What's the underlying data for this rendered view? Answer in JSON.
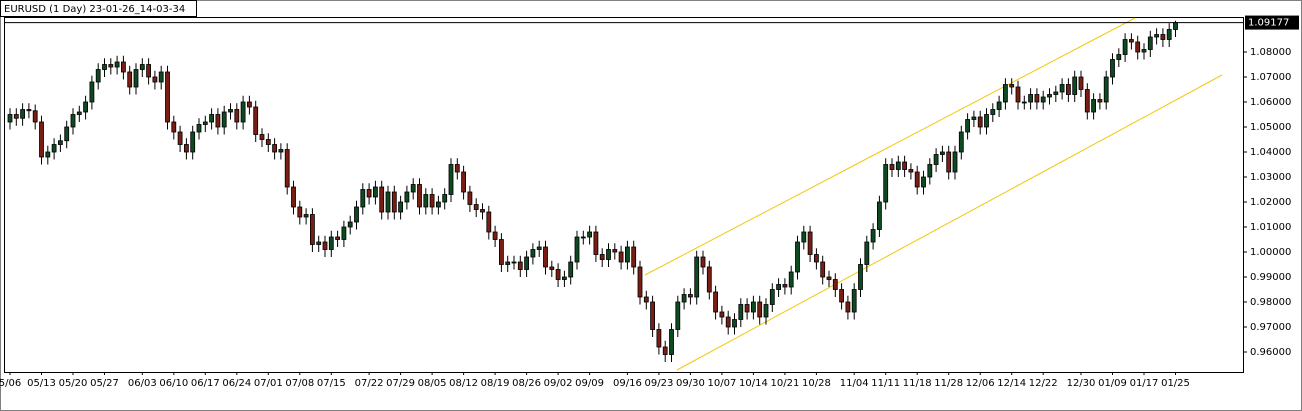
{
  "chart_data": {
    "type": "candlestick",
    "title": "EURUSD (1 Day) 23-01-26_14-03-34",
    "categories": [
      "5/06",
      null,
      null,
      null,
      null,
      "05/13",
      null,
      null,
      null,
      null,
      "05/20",
      null,
      null,
      null,
      null,
      "05/27",
      null,
      null,
      null,
      null,
      null,
      "06/03",
      null,
      null,
      null,
      null,
      "06/10",
      null,
      null,
      null,
      null,
      "06/17",
      null,
      null,
      null,
      null,
      "06/24",
      null,
      null,
      null,
      null,
      "07/01",
      null,
      null,
      null,
      null,
      "07/08",
      null,
      null,
      null,
      null,
      "07/15",
      null,
      null,
      null,
      null,
      null,
      "07/22",
      null,
      null,
      null,
      null,
      "07/29",
      null,
      null,
      null,
      null,
      "08/05",
      null,
      null,
      null,
      null,
      "08/12",
      null,
      null,
      null,
      null,
      "08/19",
      null,
      null,
      null,
      null,
      "08/26",
      null,
      null,
      null,
      null,
      "09/02",
      null,
      null,
      null,
      null,
      "09/09",
      null,
      null,
      null,
      null,
      null,
      "09/16",
      null,
      null,
      null,
      null,
      "09/23",
      null,
      null,
      null,
      null,
      "09/30",
      null,
      null,
      null,
      null,
      "10/07",
      null,
      null,
      null,
      null,
      "10/14",
      null,
      null,
      null,
      null,
      "10/21",
      null,
      null,
      null,
      null,
      "10/28",
      null,
      null,
      null,
      null,
      null,
      "11/04",
      null,
      null,
      null,
      null,
      "11/11",
      null,
      null,
      null,
      null,
      "11/18",
      null,
      null,
      null,
      null,
      "11/28",
      null,
      null,
      null,
      null,
      "12/06",
      null,
      null,
      null,
      null,
      "12/14",
      null,
      null,
      null,
      null,
      "12/22",
      null,
      null,
      null,
      null,
      null,
      "12/30",
      null,
      null,
      null,
      null,
      "01/09",
      null,
      null,
      null,
      null,
      "01/17",
      null,
      null,
      null,
      null,
      "01/25"
    ],
    "open": [
      1.052,
      1.055,
      1.0535,
      1.057,
      1.0565,
      1.052,
      1.038,
      1.04,
      1.043,
      1.0445,
      1.05,
      1.055,
      1.056,
      1.06,
      1.068,
      1.073,
      1.075,
      1.074,
      1.076,
      1.072,
      1.066,
      1.073,
      1.075,
      1.07,
      1.068,
      1.072,
      1.052,
      1.048,
      1.043,
      1.04,
      1.048,
      1.051,
      1.052,
      1.055,
      1.05,
      1.056,
      1.057,
      1.052,
      1.06,
      1.058,
      1.047,
      1.045,
      1.043,
      1.04,
      1.041,
      1.026,
      1.018,
      1.014,
      1.015,
      1.003,
      1.004,
      1.001,
      1.006,
      1.005,
      1.01,
      1.012,
      1.018,
      1.025,
      1.022,
      1.026,
      1.016,
      1.024,
      1.016,
      1.02,
      1.024,
      1.027,
      1.018,
      1.023,
      1.018,
      1.02,
      1.023,
      1.035,
      1.032,
      1.024,
      1.019,
      1.017,
      1.016,
      1.008,
      1.005,
      0.995,
      0.996,
      0.996,
      0.993,
      0.998,
      1.001,
      1.002,
      0.994,
      0.993,
      0.989,
      0.99,
      0.996,
      1.006,
      1.006,
      1.008,
      0.999,
      0.997,
      1.001,
      1,
      0.996,
      1.002,
      0.994,
      0.982,
      0.98,
      0.969,
      0.962,
      0.959,
      0.969,
      0.98,
      0.983,
      0.982,
      0.998,
      0.994,
      0.984,
      0.976,
      0.974,
      0.97,
      0.973,
      0.979,
      0.976,
      0.98,
      0.974,
      0.979,
      0.985,
      0.987,
      0.986,
      0.992,
      1.004,
      1.008,
      0.999,
      0.996,
      0.99,
      0.989,
      0.985,
      0.98,
      0.976,
      0.985,
      0.995,
      1.004,
      1.009,
      1.02,
      1.035,
      1.033,
      1.036,
      1.033,
      1.032,
      1.026,
      1.03,
      1.035,
      1.039,
      1.04,
      1.032,
      1.04,
      1.048,
      1.053,
      1.054,
      1.05,
      1.055,
      1.057,
      1.06,
      1.067,
      1.066,
      1.06,
      1.06,
      1.063,
      1.06,
      1.062,
      1.063,
      1.064,
      1.067,
      1.063,
      1.07,
      1.065,
      1.056,
      1.061,
      1.06,
      1.07,
      1.077,
      1.079,
      1.085,
      1.084,
      1.08,
      1.081,
      1.086,
      1.087,
      1.085,
      1.089
    ],
    "high": [
      1.0575,
      1.0575,
      1.0595,
      1.0595,
      1.059,
      1.0545,
      1.0425,
      1.0455,
      1.047,
      1.0525,
      1.0575,
      1.0585,
      1.0625,
      1.0705,
      1.0755,
      1.0775,
      1.0775,
      1.0785,
      1.0785,
      1.0745,
      1.0755,
      1.0775,
      1.0775,
      1.0725,
      1.0745,
      1.0745,
      1.0545,
      1.0505,
      1.0455,
      1.0505,
      1.0535,
      1.0545,
      1.0575,
      1.0575,
      1.0585,
      1.0595,
      1.0595,
      1.0625,
      1.0625,
      1.0605,
      1.0495,
      1.0475,
      1.0455,
      1.0435,
      1.0435,
      1.0285,
      1.0205,
      1.0175,
      1.0175,
      1.0065,
      1.0065,
      1.0085,
      1.0085,
      1.0125,
      1.0145,
      1.0205,
      1.0275,
      1.0275,
      1.0285,
      1.0285,
      1.0265,
      1.0265,
      1.0225,
      1.0265,
      1.0295,
      1.0295,
      1.0255,
      1.0255,
      1.0225,
      1.0255,
      1.0375,
      1.0375,
      1.0345,
      1.0265,
      1.0215,
      1.0195,
      1.0185,
      1.0105,
      1.0075,
      0.9985,
      0.9985,
      0.9985,
      1.0005,
      1.0035,
      1.0045,
      1.0045,
      0.9965,
      0.9955,
      0.9925,
      0.9985,
      1.0085,
      1.0085,
      1.0105,
      1.0105,
      1.0015,
      1.0035,
      1.0035,
      1.0025,
      1.0045,
      1.0045,
      0.9965,
      0.9845,
      0.9825,
      0.9715,
      0.9645,
      0.9715,
      0.9825,
      0.9855,
      0.9855,
      1.0005,
      1.0005,
      0.9965,
      0.9865,
      0.9785,
      0.9765,
      0.9755,
      0.9815,
      0.9815,
      0.9825,
      0.9825,
      0.9815,
      0.9875,
      0.9895,
      0.9895,
      0.9945,
      1.0065,
      1.0105,
      1.0105,
      1.0015,
      0.9985,
      0.9925,
      0.9915,
      0.9875,
      0.9825,
      0.9875,
      0.9975,
      1.0065,
      1.0115,
      1.0225,
      1.0375,
      1.0375,
      1.0385,
      1.0385,
      1.0355,
      1.0345,
      1.0325,
      1.0375,
      1.0415,
      1.0425,
      1.0425,
      1.0425,
      1.0505,
      1.0555,
      1.0565,
      1.0565,
      1.0575,
      1.0595,
      1.0625,
      1.0695,
      1.0695,
      1.0685,
      1.0625,
      1.0655,
      1.0655,
      1.0645,
      1.0655,
      1.0665,
      1.0695,
      1.0695,
      1.0725,
      1.0725,
      1.0675,
      1.0635,
      1.0635,
      1.0725,
      1.0795,
      1.0815,
      1.0875,
      1.0875,
      1.0865,
      1.0835,
      1.0885,
      1.0895,
      1.0895,
      1.0915,
      1.0925
    ],
    "low": [
      1.049,
      1.0505,
      1.0505,
      1.0535,
      1.049,
      1.035,
      1.035,
      1.037,
      1.04,
      1.0415,
      1.047,
      1.052,
      1.053,
      1.057,
      1.065,
      1.07,
      1.071,
      1.071,
      1.069,
      1.063,
      1.063,
      1.07,
      1.067,
      1.065,
      1.065,
      1.049,
      1.045,
      1.04,
      1.037,
      1.037,
      1.045,
      1.048,
      1.049,
      1.047,
      1.047,
      1.053,
      1.049,
      1.049,
      1.055,
      1.044,
      1.042,
      1.04,
      1.037,
      1.037,
      1.023,
      1.015,
      1.011,
      1.011,
      1,
      1,
      0.998,
      0.998,
      1.002,
      1.002,
      1.007,
      1.009,
      1.015,
      1.019,
      1.019,
      1.013,
      1.013,
      1.013,
      1.013,
      1.017,
      1.021,
      1.015,
      1.015,
      1.015,
      1.015,
      1.017,
      1.02,
      1.029,
      1.021,
      1.016,
      1.014,
      1.013,
      1.005,
      1.002,
      0.992,
      0.992,
      0.993,
      0.99,
      0.99,
      0.995,
      0.998,
      0.991,
      0.99,
      0.986,
      0.986,
      0.987,
      0.993,
      1.003,
      1.003,
      0.996,
      0.994,
      0.994,
      0.997,
      0.993,
      0.993,
      0.991,
      0.979,
      0.977,
      0.966,
      0.959,
      0.956,
      0.956,
      0.966,
      0.977,
      0.979,
      0.979,
      0.991,
      0.981,
      0.973,
      0.971,
      0.967,
      0.967,
      0.97,
      0.973,
      0.973,
      0.971,
      0.971,
      0.976,
      0.982,
      0.983,
      0.983,
      0.989,
      1.001,
      0.996,
      0.993,
      0.987,
      0.986,
      0.982,
      0.977,
      0.973,
      0.973,
      0.982,
      0.992,
      1.001,
      1.006,
      1.017,
      1.03,
      1.03,
      1.03,
      1.029,
      1.023,
      1.023,
      1.027,
      1.032,
      1.036,
      1.029,
      1.029,
      1.037,
      1.045,
      1.05,
      1.047,
      1.047,
      1.052,
      1.054,
      1.057,
      1.063,
      1.057,
      1.057,
      1.057,
      1.057,
      1.057,
      1.059,
      1.06,
      1.061,
      1.06,
      1.06,
      1.062,
      1.053,
      1.053,
      1.057,
      1.057,
      1.067,
      1.074,
      1.076,
      1.081,
      1.077,
      1.077,
      1.078,
      1.083,
      1.082,
      1.082,
      1.086
    ],
    "close": [
      1.055,
      1.0535,
      1.057,
      1.0565,
      1.052,
      1.038,
      1.04,
      1.043,
      1.0445,
      1.05,
      1.055,
      1.056,
      1.06,
      1.068,
      1.073,
      1.075,
      1.074,
      1.076,
      1.072,
      1.066,
      1.073,
      1.075,
      1.07,
      1.068,
      1.072,
      1.052,
      1.048,
      1.043,
      1.04,
      1.048,
      1.051,
      1.052,
      1.055,
      1.05,
      1.056,
      1.057,
      1.052,
      1.06,
      1.058,
      1.047,
      1.045,
      1.043,
      1.04,
      1.041,
      1.026,
      1.018,
      1.014,
      1.015,
      1.003,
      1.004,
      1.001,
      1.006,
      1.005,
      1.01,
      1.012,
      1.018,
      1.025,
      1.022,
      1.026,
      1.016,
      1.024,
      1.016,
      1.02,
      1.024,
      1.027,
      1.018,
      1.023,
      1.018,
      1.02,
      1.023,
      1.035,
      1.032,
      1.024,
      1.019,
      1.017,
      1.016,
      1.008,
      1.005,
      0.995,
      0.996,
      0.996,
      0.993,
      0.998,
      1.001,
      1.002,
      0.994,
      0.993,
      0.989,
      0.99,
      0.996,
      1.006,
      1.006,
      1.008,
      0.999,
      0.997,
      1.001,
      1,
      0.996,
      1.002,
      0.994,
      0.982,
      0.98,
      0.969,
      0.962,
      0.959,
      0.969,
      0.98,
      0.983,
      0.982,
      0.998,
      0.994,
      0.984,
      0.976,
      0.974,
      0.97,
      0.973,
      0.979,
      0.976,
      0.98,
      0.974,
      0.979,
      0.985,
      0.987,
      0.986,
      0.992,
      1.004,
      1.008,
      0.999,
      0.996,
      0.99,
      0.989,
      0.985,
      0.98,
      0.976,
      0.985,
      0.995,
      1.004,
      1.009,
      1.02,
      1.035,
      1.033,
      1.036,
      1.033,
      1.032,
      1.026,
      1.03,
      1.035,
      1.039,
      1.04,
      1.032,
      1.04,
      1.048,
      1.053,
      1.054,
      1.05,
      1.055,
      1.057,
      1.06,
      1.067,
      1.066,
      1.06,
      1.06,
      1.063,
      1.06,
      1.062,
      1.063,
      1.064,
      1.067,
      1.063,
      1.07,
      1.065,
      1.056,
      1.061,
      1.06,
      1.07,
      1.077,
      1.079,
      1.085,
      1.084,
      1.08,
      1.081,
      1.086,
      1.087,
      1.085,
      1.089,
      1.0918
    ],
    "ylim": [
      0.952,
      1.0936
    ],
    "yticks": [
      {
        "value": 0.96,
        "label": "0.96000"
      },
      {
        "value": 0.97,
        "label": "0.97000"
      },
      {
        "value": 0.98,
        "label": "0.98000"
      },
      {
        "value": 0.99,
        "label": "0.99000"
      },
      {
        "value": 1.0,
        "label": "1.00000"
      },
      {
        "value": 1.01,
        "label": "1.01000"
      },
      {
        "value": 1.02,
        "label": "1.02000"
      },
      {
        "value": 1.03,
        "label": "1.03000"
      },
      {
        "value": 1.04,
        "label": "1.04000"
      },
      {
        "value": 1.05,
        "label": "1.05000"
      },
      {
        "value": 1.06,
        "label": "1.06000"
      },
      {
        "value": 1.07,
        "label": "1.07000"
      },
      {
        "value": 1.08,
        "label": "1.08000"
      }
    ],
    "current_price": 1.09177,
    "up_color": "#0d4a22",
    "down_color": "#7a1d12"
  }
}
